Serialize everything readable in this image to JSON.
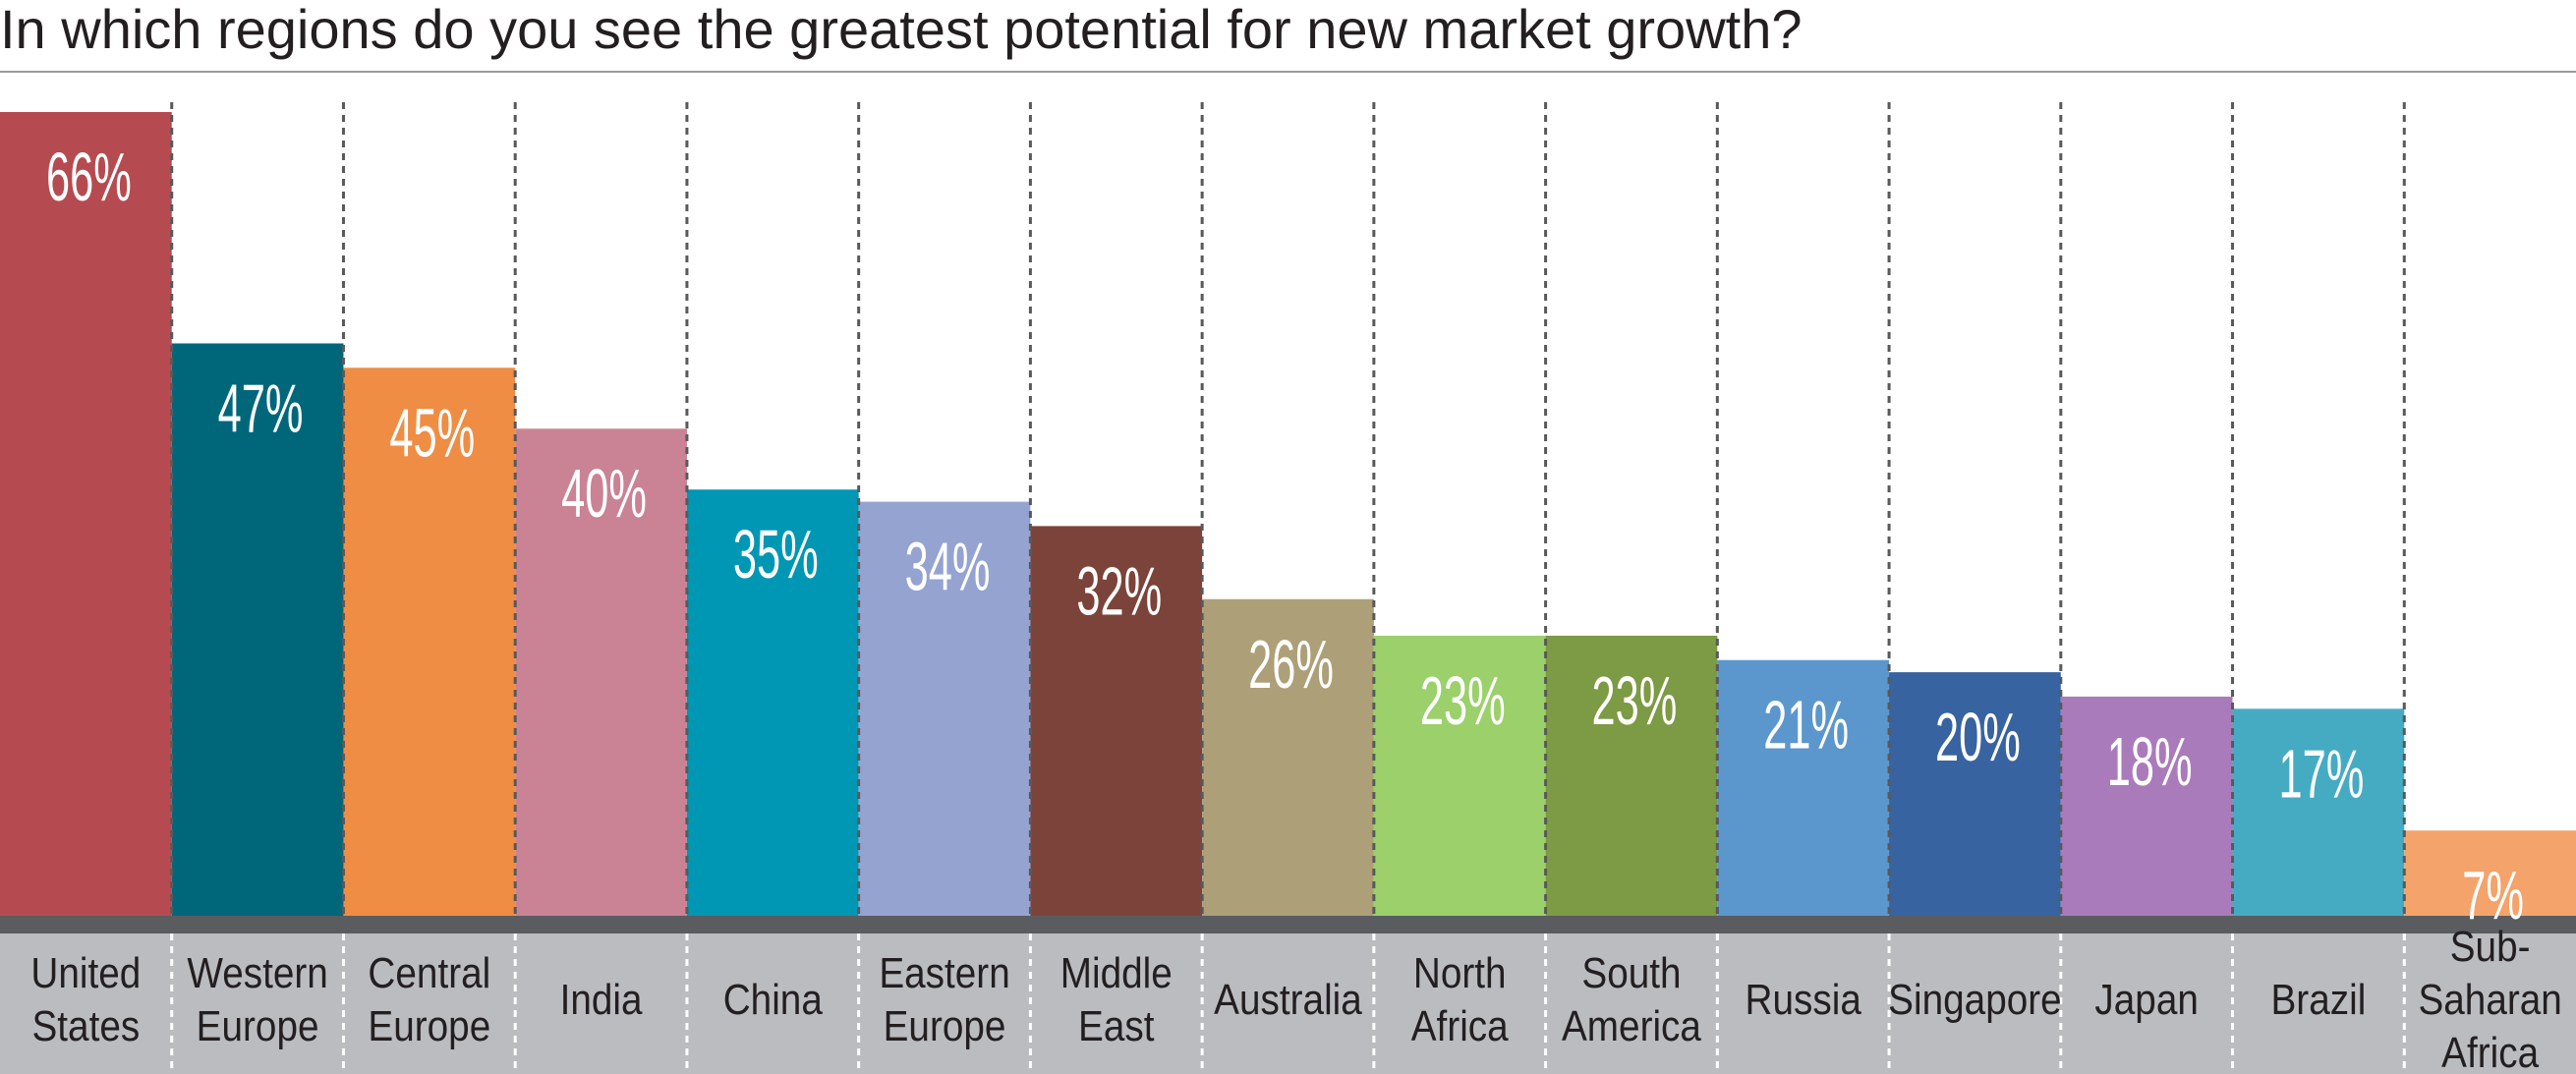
{
  "title": "In which regions do you see the greatest potential for new market growth?",
  "chart_data": {
    "type": "bar",
    "title": "In which regions do you see the greatest potential for new market growth?",
    "xlabel": "",
    "ylabel": "",
    "ylim": [
      0,
      70
    ],
    "grid": "vertical dashed separators",
    "categories": [
      [
        "United",
        "States"
      ],
      [
        "Western",
        "Europe"
      ],
      [
        "Central",
        "Europe"
      ],
      [
        "India"
      ],
      [
        "China"
      ],
      [
        "Eastern",
        "Europe"
      ],
      [
        "Middle",
        "East"
      ],
      [
        "Australia"
      ],
      [
        "North",
        "Africa"
      ],
      [
        "South",
        "America"
      ],
      [
        "Russia"
      ],
      [
        "Singapore"
      ],
      [
        "Japan"
      ],
      [
        "Brazil"
      ],
      [
        "Sub-",
        "Saharan",
        "Africa"
      ]
    ],
    "values": [
      66,
      47,
      45,
      40,
      35,
      34,
      32,
      26,
      23,
      23,
      21,
      20,
      18,
      17,
      7
    ],
    "value_labels": [
      "66%",
      "47%",
      "45%",
      "40%",
      "35%",
      "34%",
      "32%",
      "26%",
      "23%",
      "23%",
      "21%",
      "20%",
      "18%",
      "17%",
      "7%"
    ],
    "colors": [
      "#b54b50",
      "#00677a",
      "#ef8d44",
      "#c98395",
      "#0097b4",
      "#95a3d1",
      "#7b4339",
      "#ad9f78",
      "#9bd06b",
      "#7d9a44",
      "#5b97cc",
      "#3863a1",
      "#aa7bba",
      "#45abc3",
      "#f4a36a"
    ]
  },
  "style": {
    "base_bar_color": "#5b5c60",
    "label_band_color": "#bbbcc0",
    "separator_color": "#58595b",
    "value_text_color": "#ffffff",
    "category_text_color": "#231f20"
  }
}
